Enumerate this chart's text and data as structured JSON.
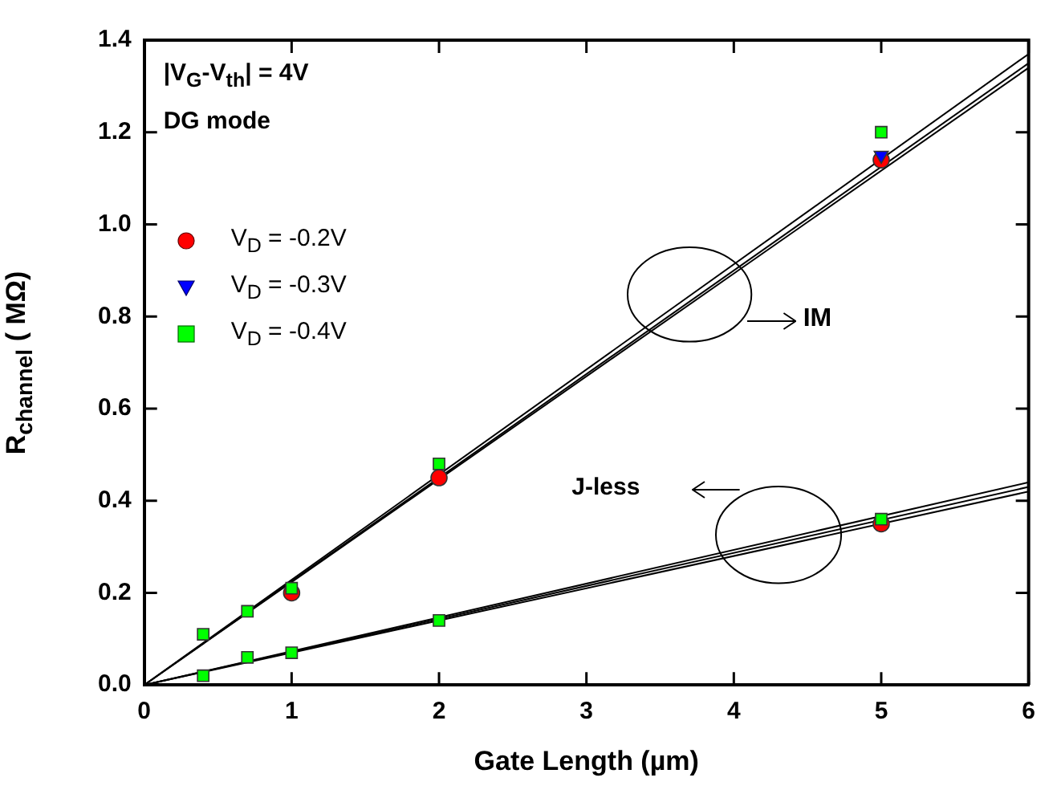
{
  "chart_data": {
    "type": "scatter",
    "xlabel": "Gate Length (µm)",
    "ylabel": "R$_{channel}$ ( MΩ)",
    "xlim": [
      0,
      6
    ],
    "xticks": [
      0,
      1,
      2,
      3,
      4,
      5,
      6
    ],
    "ylim": [
      0,
      1.4
    ],
    "yticks": [
      {
        "value": 0,
        "label": "0.0"
      },
      {
        "value": 0.2,
        "label": "0.2"
      },
      {
        "value": 0.4,
        "label": "0.4"
      },
      {
        "value": 0.6,
        "label": "0.6"
      },
      {
        "value": 0.8,
        "label": "0.8"
      },
      {
        "value": 1.0,
        "label": "1.0"
      },
      {
        "value": 1.2,
        "label": "1.2"
      },
      {
        "value": 1.4,
        "label": "1.4"
      }
    ],
    "grid": false,
    "legend": "top left",
    "annotations": [
      "|V$_{G}$-V$_{th}$| = 4V",
      "DG mode",
      "IM",
      "J-less"
    ],
    "series": [
      {
        "type": "line",
        "color": "#000000",
        "marker": "none",
        "x": [
          0,
          6
        ],
        "values": [
          0,
          1.34
        ]
      },
      {
        "type": "line",
        "color": "#000000",
        "marker": "none",
        "x": [
          0,
          6
        ],
        "values": [
          0,
          1.35
        ]
      },
      {
        "type": "line",
        "color": "#000000",
        "marker": "none",
        "x": [
          0,
          6
        ],
        "values": [
          0,
          1.37
        ]
      },
      {
        "type": "line",
        "color": "#000000",
        "marker": "none",
        "x": [
          0,
          6
        ],
        "values": [
          0,
          0.42
        ]
      },
      {
        "type": "line",
        "color": "#000000",
        "marker": "none",
        "x": [
          0,
          6
        ],
        "values": [
          0,
          0.43
        ]
      },
      {
        "type": "line",
        "color": "#000000",
        "marker": "none",
        "x": [
          0,
          6
        ],
        "values": [
          0,
          0.44
        ]
      },
      {
        "name": "V$_{D}$ = -0.2V",
        "type": "scatter",
        "color": "#ff0000",
        "marker": "circle",
        "x": [
          1,
          2,
          5,
          5
        ],
        "values": [
          0.2,
          0.45,
          1.14,
          0.35
        ]
      },
      {
        "name": "V$_{D}$ = -0.3V",
        "type": "scatter",
        "color": "#0000ff",
        "marker": "triangle",
        "x": [
          5
        ],
        "values": [
          1.15
        ]
      },
      {
        "name": "V$_{D}$ = -0.4V",
        "type": "scatter",
        "color": "#00ff00",
        "marker": "square",
        "x": [
          0.4,
          0.7,
          1,
          2,
          5,
          0.4,
          0.7,
          1,
          2,
          5
        ],
        "values": [
          0.11,
          0.16,
          0.21,
          0.48,
          1.2,
          0.02,
          0.06,
          0.07,
          0.14,
          0.36
        ]
      }
    ]
  }
}
